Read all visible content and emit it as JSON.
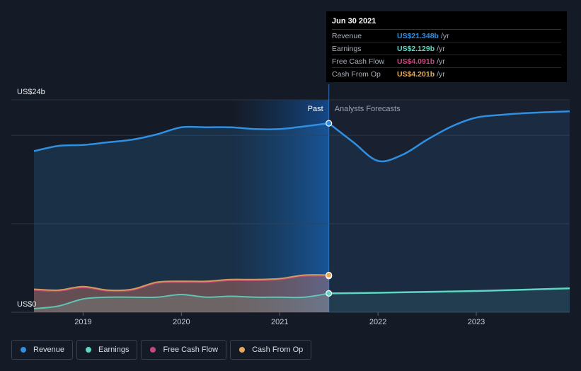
{
  "chart_data": {
    "type": "area",
    "y_top_label": "US$24b",
    "y_bottom_label": "US$0",
    "ylim": [
      0,
      24
    ],
    "xlim": [
      2018.5,
      2023.95
    ],
    "divider_x": 2021.5,
    "past_label": "Past",
    "forecast_label": "Analysts Forecasts",
    "x_ticks": [
      {
        "x": 2019,
        "label": "2019"
      },
      {
        "x": 2020,
        "label": "2020"
      },
      {
        "x": 2021,
        "label": "2021"
      },
      {
        "x": 2022,
        "label": "2022"
      },
      {
        "x": 2023,
        "label": "2023"
      }
    ],
    "series": [
      {
        "name": "Revenue",
        "color": "#2f8fe0",
        "past": [
          [
            2018.5,
            18.2
          ],
          [
            2018.75,
            18.8
          ],
          [
            2019,
            18.9
          ],
          [
            2019.25,
            19.2
          ],
          [
            2019.5,
            19.5
          ],
          [
            2019.75,
            20.1
          ],
          [
            2020,
            20.9
          ],
          [
            2020.25,
            20.9
          ],
          [
            2020.5,
            20.9
          ],
          [
            2020.75,
            20.7
          ],
          [
            2021,
            20.7
          ],
          [
            2021.25,
            21.0
          ],
          [
            2021.5,
            21.35
          ]
        ],
        "forecast": [
          [
            2021.5,
            21.35
          ],
          [
            2021.75,
            19.2
          ],
          [
            2022,
            17.1
          ],
          [
            2022.25,
            17.8
          ],
          [
            2022.5,
            19.5
          ],
          [
            2022.75,
            21.0
          ],
          [
            2023,
            22.0
          ],
          [
            2023.25,
            22.3
          ],
          [
            2023.5,
            22.5
          ],
          [
            2023.95,
            22.7
          ]
        ]
      },
      {
        "name": "Earnings",
        "color": "#5ed6c3",
        "past": [
          [
            2018.5,
            0.4
          ],
          [
            2018.75,
            0.7
          ],
          [
            2019,
            1.5
          ],
          [
            2019.25,
            1.7
          ],
          [
            2019.5,
            1.7
          ],
          [
            2019.75,
            1.7
          ],
          [
            2020,
            2.0
          ],
          [
            2020.25,
            1.7
          ],
          [
            2020.5,
            1.8
          ],
          [
            2020.75,
            1.7
          ],
          [
            2021,
            1.7
          ],
          [
            2021.25,
            1.7
          ],
          [
            2021.5,
            2.129
          ]
        ],
        "forecast": [
          [
            2021.5,
            2.129
          ],
          [
            2022,
            2.2
          ],
          [
            2022.5,
            2.3
          ],
          [
            2023,
            2.4
          ],
          [
            2023.5,
            2.55
          ],
          [
            2023.95,
            2.7
          ]
        ]
      },
      {
        "name": "Free Cash Flow",
        "color": "#c8477e",
        "past": [
          [
            2018.5,
            2.5
          ],
          [
            2018.75,
            2.4
          ],
          [
            2019,
            2.8
          ],
          [
            2019.25,
            2.4
          ],
          [
            2019.5,
            2.5
          ],
          [
            2019.75,
            3.3
          ],
          [
            2020,
            3.4
          ],
          [
            2020.25,
            3.4
          ],
          [
            2020.5,
            3.6
          ],
          [
            2020.75,
            3.6
          ],
          [
            2021,
            3.7
          ],
          [
            2021.25,
            4.1
          ],
          [
            2021.5,
            4.091
          ]
        ],
        "forecast": []
      },
      {
        "name": "Cash From Op",
        "color": "#e8a95b",
        "past": [
          [
            2018.5,
            2.6
          ],
          [
            2018.75,
            2.5
          ],
          [
            2019,
            2.9
          ],
          [
            2019.25,
            2.5
          ],
          [
            2019.5,
            2.6
          ],
          [
            2019.75,
            3.4
          ],
          [
            2020,
            3.5
          ],
          [
            2020.25,
            3.5
          ],
          [
            2020.5,
            3.7
          ],
          [
            2020.75,
            3.7
          ],
          [
            2021,
            3.8
          ],
          [
            2021.25,
            4.2
          ],
          [
            2021.5,
            4.201
          ]
        ],
        "forecast": []
      }
    ]
  },
  "tooltip": {
    "date": "Jun 30 2021",
    "rows": [
      {
        "label": "Revenue",
        "value": "US$21.348b",
        "unit": "/yr",
        "color": "#2f8fe0"
      },
      {
        "label": "Earnings",
        "value": "US$2.129b",
        "unit": "/yr",
        "color": "#5ed6c3"
      },
      {
        "label": "Free Cash Flow",
        "value": "US$4.091b",
        "unit": "/yr",
        "color": "#c8477e"
      },
      {
        "label": "Cash From Op",
        "value": "US$4.201b",
        "unit": "/yr",
        "color": "#e8a95b"
      }
    ]
  },
  "legend": [
    {
      "label": "Revenue",
      "color": "#2f8fe0"
    },
    {
      "label": "Earnings",
      "color": "#5ed6c3"
    },
    {
      "label": "Free Cash Flow",
      "color": "#c8477e"
    },
    {
      "label": "Cash From Op",
      "color": "#e8a95b"
    }
  ]
}
